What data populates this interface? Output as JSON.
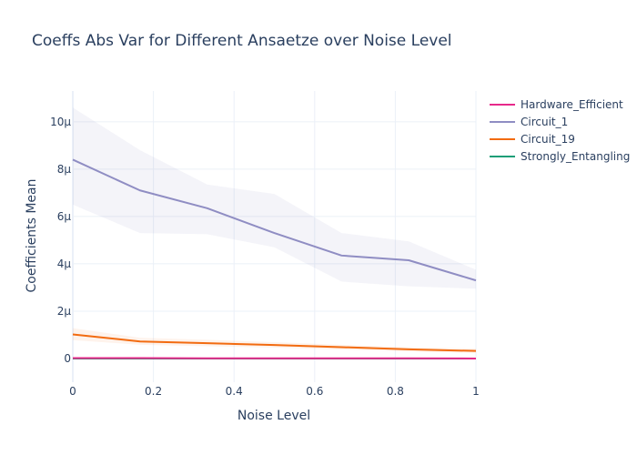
{
  "chart_data": {
    "type": "line",
    "title": "Coeffs Abs Var for Different Ansaetze over Noise Level",
    "xlabel": "Noise Level",
    "ylabel": "Coefficients Mean",
    "x": [
      0,
      0.1667,
      0.3333,
      0.5,
      0.6667,
      0.8333,
      1
    ],
    "xlim": [
      0,
      1
    ],
    "ylim": [
      -1.0,
      11.3
    ],
    "y_unit_note": "values in micro units (µ)",
    "x_ticks": [
      {
        "value": 0,
        "label": "0"
      },
      {
        "value": 0.2,
        "label": "0.2"
      },
      {
        "value": 0.4,
        "label": "0.4"
      },
      {
        "value": 0.6,
        "label": "0.6"
      },
      {
        "value": 0.8,
        "label": "0.8"
      },
      {
        "value": 1,
        "label": "1"
      }
    ],
    "y_ticks": [
      {
        "value": 0,
        "label": "0"
      },
      {
        "value": 2,
        "label": "2μ"
      },
      {
        "value": 4,
        "label": "4μ"
      },
      {
        "value": 6,
        "label": "6μ"
      },
      {
        "value": 8,
        "label": "8μ"
      },
      {
        "value": 10,
        "label": "10μ"
      }
    ],
    "grid": true,
    "legend_position": "top-right",
    "series": [
      {
        "name": "Hardware_Efficient",
        "color": "#e7298a",
        "band_color": "rgba(231,41,138,0.08)",
        "values": [
          0.02,
          0.02,
          0.01,
          0.01,
          0.01,
          0.01,
          0.0
        ],
        "lower": [
          0.0,
          0.0,
          0.0,
          0.0,
          0.0,
          0.0,
          0.0
        ],
        "upper": [
          0.05,
          0.05,
          0.04,
          0.03,
          0.03,
          0.03,
          0.02
        ]
      },
      {
        "name": "Circuit_1",
        "color": "#8f8dc3",
        "band_color": "rgba(117,112,179,0.08)",
        "values": [
          8.4,
          7.1,
          6.35,
          5.3,
          4.35,
          4.15,
          3.3
        ],
        "lower": [
          6.5,
          5.3,
          5.25,
          4.7,
          3.25,
          3.05,
          2.95
        ],
        "upper": [
          10.6,
          8.8,
          7.35,
          6.95,
          5.3,
          4.95,
          3.75
        ]
      },
      {
        "name": "Circuit_19",
        "color": "#f26b10",
        "band_color": "rgba(242,107,16,0.08)",
        "values": [
          1.02,
          0.72,
          0.65,
          0.57,
          0.48,
          0.39,
          0.32
        ],
        "lower": [
          0.78,
          0.58,
          0.52,
          0.46,
          0.38,
          0.3,
          0.24
        ],
        "upper": [
          1.28,
          0.88,
          0.79,
          0.69,
          0.58,
          0.48,
          0.42
        ]
      },
      {
        "name": "Strongly_Entangling",
        "color": "#1b9e77",
        "band_color": "rgba(27,158,119,0.08)",
        "values": [
          0.0,
          0.0,
          0.0,
          0.0,
          0.0,
          0.0,
          0.0
        ],
        "lower": [
          0.0,
          0.0,
          0.0,
          0.0,
          0.0,
          0.0,
          0.0
        ],
        "upper": [
          0.01,
          0.01,
          0.01,
          0.01,
          0.01,
          0.01,
          0.01
        ]
      }
    ]
  }
}
